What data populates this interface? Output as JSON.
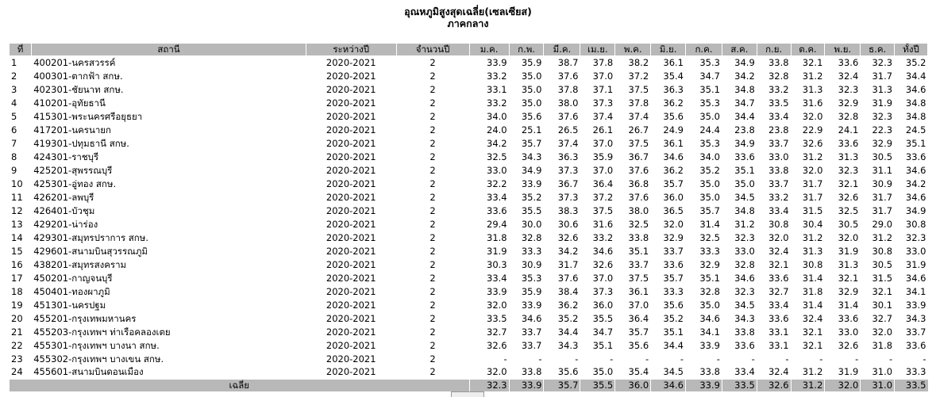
{
  "title": {
    "line1": "อุณหภูมิสูงสุดเฉลี่ย(เซลเซียส)",
    "line2": "ภาคกลาง"
  },
  "columns": [
    "ที่",
    "สถานี",
    "ระหว่างปี",
    "จำนวนปี",
    "ม.ค.",
    "ก.พ.",
    "มี.ค.",
    "เม.ย.",
    "พ.ค.",
    "มิ.ย.",
    "ก.ค.",
    "ส.ค.",
    "ก.ย.",
    "ต.ค.",
    "พ.ย.",
    "ธ.ค.",
    "ทั้งปี"
  ],
  "rows": [
    [
      "1",
      "400201-นครสวรรค์",
      "2020-2021",
      "2",
      "33.9",
      "35.9",
      "38.7",
      "37.8",
      "38.2",
      "36.1",
      "35.3",
      "34.9",
      "33.8",
      "32.1",
      "33.6",
      "32.3",
      "35.2"
    ],
    [
      "2",
      "400301-ตากฟ้า สกษ.",
      "2020-2021",
      "2",
      "33.2",
      "35.0",
      "37.6",
      "37.0",
      "37.2",
      "35.4",
      "34.7",
      "34.2",
      "32.8",
      "31.2",
      "32.4",
      "31.7",
      "34.4"
    ],
    [
      "3",
      "402301-ชัยนาท สกษ.",
      "2020-2021",
      "2",
      "33.1",
      "35.0",
      "37.8",
      "37.1",
      "37.5",
      "36.3",
      "35.1",
      "34.8",
      "33.2",
      "31.3",
      "32.3",
      "31.3",
      "34.6"
    ],
    [
      "4",
      "410201-อุทัยธานี",
      "2020-2021",
      "2",
      "33.2",
      "35.0",
      "38.0",
      "37.3",
      "37.8",
      "36.2",
      "35.3",
      "34.7",
      "33.5",
      "31.6",
      "32.9",
      "31.9",
      "34.8"
    ],
    [
      "5",
      "415301-พระนครศรีอยุธยา",
      "2020-2021",
      "2",
      "34.0",
      "35.6",
      "37.6",
      "37.4",
      "37.4",
      "35.6",
      "35.0",
      "34.4",
      "33.4",
      "32.0",
      "32.8",
      "32.3",
      "34.8"
    ],
    [
      "6",
      "417201-นครนายก",
      "2020-2021",
      "2",
      "24.0",
      "25.1",
      "26.5",
      "26.1",
      "26.7",
      "24.9",
      "24.4",
      "23.8",
      "23.8",
      "22.9",
      "24.1",
      "22.3",
      "24.5"
    ],
    [
      "7",
      "419301-ปทุมธานี สกษ.",
      "2020-2021",
      "2",
      "34.2",
      "35.7",
      "37.4",
      "37.0",
      "37.5",
      "36.1",
      "35.3",
      "34.9",
      "33.7",
      "32.6",
      "33.6",
      "32.9",
      "35.1"
    ],
    [
      "8",
      "424301-ราชบุรี",
      "2020-2021",
      "2",
      "32.5",
      "34.3",
      "36.3",
      "35.9",
      "36.7",
      "34.6",
      "34.0",
      "33.6",
      "33.0",
      "31.2",
      "31.3",
      "30.5",
      "33.6"
    ],
    [
      "9",
      "425201-สุพรรณบุรี",
      "2020-2021",
      "2",
      "33.0",
      "34.9",
      "37.3",
      "37.0",
      "37.6",
      "36.2",
      "35.2",
      "35.1",
      "33.8",
      "32.0",
      "32.3",
      "31.1",
      "34.6"
    ],
    [
      "10",
      "425301-อู่ทอง สกษ.",
      "2020-2021",
      "2",
      "32.2",
      "33.9",
      "36.7",
      "36.4",
      "36.8",
      "35.7",
      "35.0",
      "35.0",
      "33.7",
      "31.7",
      "32.1",
      "30.9",
      "34.2"
    ],
    [
      "11",
      "426201-ลพบุรี",
      "2020-2021",
      "2",
      "33.4",
      "35.2",
      "37.3",
      "37.2",
      "37.6",
      "36.0",
      "35.0",
      "34.5",
      "33.2",
      "31.7",
      "32.6",
      "31.7",
      "34.6"
    ],
    [
      "12",
      "426401-บัวชุม",
      "2020-2021",
      "2",
      "33.6",
      "35.5",
      "38.3",
      "37.5",
      "38.0",
      "36.5",
      "35.7",
      "34.8",
      "33.4",
      "31.5",
      "32.5",
      "31.7",
      "34.9"
    ],
    [
      "13",
      "429201-น่าร่อง",
      "2020-2021",
      "2",
      "29.4",
      "30.0",
      "30.6",
      "31.6",
      "32.5",
      "32.0",
      "31.4",
      "31.2",
      "30.8",
      "30.4",
      "30.5",
      "29.0",
      "30.8"
    ],
    [
      "14",
      "429301-สมุทรปราการ สกษ.",
      "2020-2021",
      "2",
      "31.8",
      "32.8",
      "32.6",
      "33.2",
      "33.8",
      "32.9",
      "32.5",
      "32.3",
      "32.0",
      "31.2",
      "32.0",
      "31.2",
      "32.3"
    ],
    [
      "15",
      "429601-สนามบินสุวรรณภูมิ",
      "2020-2021",
      "2",
      "31.9",
      "33.3",
      "34.2",
      "34.6",
      "35.1",
      "33.7",
      "33.3",
      "33.0",
      "32.4",
      "31.3",
      "31.9",
      "30.8",
      "33.0"
    ],
    [
      "16",
      "438201-สมุทรสงคราม",
      "2020-2021",
      "2",
      "30.3",
      "30.9",
      "31.7",
      "32.6",
      "33.7",
      "33.6",
      "32.9",
      "32.8",
      "32.1",
      "30.8",
      "31.3",
      "30.5",
      "31.9"
    ],
    [
      "17",
      "450201-กาญจนบุรี",
      "2020-2021",
      "2",
      "33.4",
      "35.3",
      "37.6",
      "37.0",
      "37.5",
      "35.7",
      "35.1",
      "34.6",
      "33.6",
      "31.4",
      "32.1",
      "31.5",
      "34.6"
    ],
    [
      "18",
      "450401-ทองผาภูมิ",
      "2020-2021",
      "2",
      "33.9",
      "35.9",
      "38.4",
      "37.3",
      "36.1",
      "33.3",
      "32.8",
      "32.3",
      "32.7",
      "31.8",
      "32.9",
      "32.1",
      "34.1"
    ],
    [
      "19",
      "451301-นครปฐม",
      "2020-2021",
      "2",
      "32.0",
      "33.9",
      "36.2",
      "36.0",
      "37.0",
      "35.6",
      "35.0",
      "34.5",
      "33.4",
      "31.4",
      "31.4",
      "30.1",
      "33.9"
    ],
    [
      "20",
      "455201-กรุงเทพมหานคร",
      "2020-2021",
      "2",
      "33.5",
      "34.6",
      "35.2",
      "35.5",
      "36.4",
      "35.2",
      "34.6",
      "34.3",
      "33.6",
      "32.4",
      "33.6",
      "32.7",
      "34.3"
    ],
    [
      "21",
      "455203-กรุงเทพฯ ท่าเรือคลองเตย",
      "2020-2021",
      "2",
      "32.7",
      "33.7",
      "34.4",
      "34.7",
      "35.7",
      "35.1",
      "34.1",
      "33.8",
      "33.1",
      "32.1",
      "33.0",
      "32.0",
      "33.7"
    ],
    [
      "22",
      "455301-กรุงเทพฯ บางนา สกษ.",
      "2020-2021",
      "2",
      "32.6",
      "33.7",
      "34.3",
      "35.1",
      "35.6",
      "34.4",
      "33.9",
      "33.6",
      "33.1",
      "32.1",
      "32.6",
      "31.8",
      "33.6"
    ],
    [
      "23",
      "455302-กรุงเทพฯ บางเขน สกษ.",
      "2020-2021",
      "2",
      "-",
      "-",
      "-",
      "-",
      "-",
      "-",
      "-",
      "-",
      "-",
      "-",
      "-",
      "-",
      "-"
    ],
    [
      "24",
      "455601-สนามบินดอนเมือง",
      "2020-2021",
      "2",
      "32.0",
      "33.8",
      "35.6",
      "35.0",
      "35.4",
      "34.5",
      "33.8",
      "33.4",
      "32.4",
      "31.2",
      "31.9",
      "31.0",
      "33.3"
    ]
  ],
  "footer": {
    "label": "เฉลี่ย",
    "values": [
      "32.3",
      "33.9",
      "35.7",
      "35.5",
      "36.0",
      "34.6",
      "33.9",
      "33.5",
      "32.6",
      "31.2",
      "32.0",
      "31.0",
      "33.5"
    ]
  }
}
